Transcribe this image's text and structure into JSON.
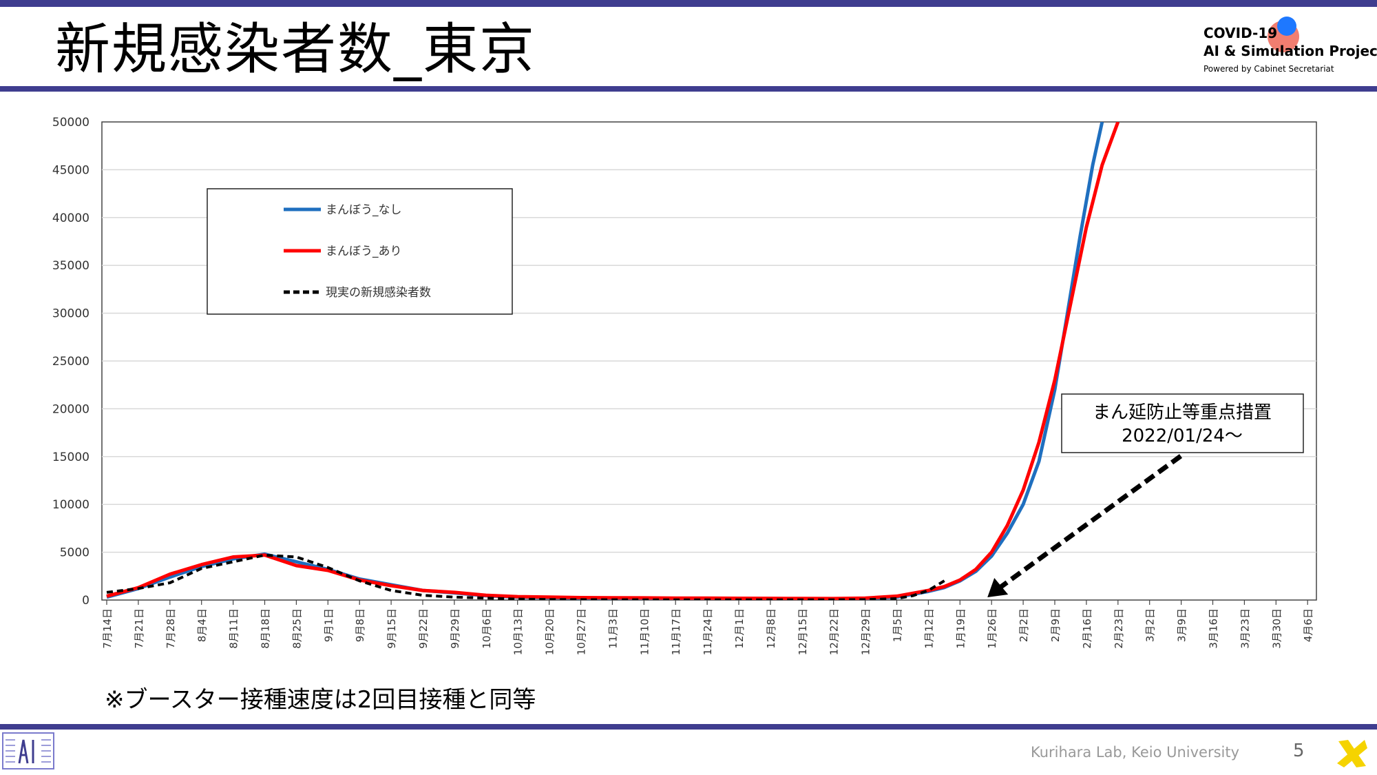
{
  "header": {
    "title": "新規感染者数_東京",
    "logo": {
      "line1": "COVID-19",
      "line2": "AI & Simulation Project",
      "line3": "Powered by Cabinet Secretariat"
    }
  },
  "note": "※ブースター接種速度は2回目接種と同等",
  "footer": {
    "lab": "Kurihara Lab, Keio University",
    "page": "5"
  },
  "chart_data": {
    "type": "line",
    "xlabel": "",
    "ylabel": "",
    "ylim": [
      0,
      50000
    ],
    "yticks": [
      "50000",
      "45000",
      "40000",
      "35000",
      "30000",
      "25000",
      "20000",
      "15000",
      "10000",
      "5000",
      "0"
    ],
    "x_labels": [
      "7月14日",
      "7月21日",
      "7月28日",
      "8月4日",
      "8月11日",
      "8月18日",
      "8月25日",
      "9月1日",
      "9月8日",
      "9月15日",
      "9月22日",
      "9月29日",
      "10月6日",
      "10月13日",
      "10月20日",
      "10月27日",
      "11月3日",
      "11月10日",
      "11月17日",
      "11月24日",
      "12月1日",
      "12月8日",
      "12月15日",
      "12月22日",
      "12月29日",
      "1月5日",
      "1月12日",
      "1月19日",
      "1月26日",
      "2月2日",
      "2月9日",
      "2月16日",
      "2月23日",
      "3月2日",
      "3月9日",
      "3月16日",
      "3月23日",
      "3月30日",
      "4月6日"
    ],
    "grid": "horizontal",
    "legend_position": "top-left",
    "annotation": {
      "line1": "まん延防止等重点措置",
      "line2": "2022/01/24～",
      "arrow_to_week": 28
    },
    "series": [
      {
        "name": "まんぼう_なし",
        "color": "#1f6fbf",
        "style": "solid",
        "points": [
          [
            0,
            300
          ],
          [
            1,
            1200
          ],
          [
            2,
            2400
          ],
          [
            3,
            3500
          ],
          [
            4,
            4300
          ],
          [
            5,
            4800
          ],
          [
            6,
            4000
          ],
          [
            7,
            3200
          ],
          [
            8,
            2200
          ],
          [
            9,
            1600
          ],
          [
            10,
            1000
          ],
          [
            11,
            750
          ],
          [
            12,
            450
          ],
          [
            13,
            300
          ],
          [
            14,
            250
          ],
          [
            15,
            200
          ],
          [
            16,
            180
          ],
          [
            17,
            170
          ],
          [
            18,
            170
          ],
          [
            19,
            170
          ],
          [
            20,
            160
          ],
          [
            21,
            150
          ],
          [
            22,
            140
          ],
          [
            23,
            120
          ],
          [
            24,
            150
          ],
          [
            25,
            300
          ],
          [
            26,
            900
          ],
          [
            26.5,
            1300
          ],
          [
            27,
            2000
          ],
          [
            27.5,
            3000
          ],
          [
            28,
            4600
          ],
          [
            28.5,
            7000
          ],
          [
            29,
            10000
          ],
          [
            29.5,
            14500
          ],
          [
            30,
            22000
          ],
          [
            30.4,
            30000
          ],
          [
            30.8,
            38000
          ],
          [
            31.2,
            45500
          ],
          [
            31.5,
            50000
          ]
        ]
      },
      {
        "name": "まんぼう_あり",
        "color": "#ff0000",
        "style": "solid",
        "points": [
          [
            0,
            400
          ],
          [
            1,
            1300
          ],
          [
            2,
            2700
          ],
          [
            3,
            3700
          ],
          [
            4,
            4500
          ],
          [
            5,
            4700
          ],
          [
            6,
            3600
          ],
          [
            7,
            3100
          ],
          [
            8,
            2100
          ],
          [
            9,
            1500
          ],
          [
            10,
            1000
          ],
          [
            11,
            800
          ],
          [
            12,
            500
          ],
          [
            13,
            350
          ],
          [
            14,
            300
          ],
          [
            15,
            250
          ],
          [
            16,
            230
          ],
          [
            17,
            220
          ],
          [
            18,
            200
          ],
          [
            19,
            200
          ],
          [
            20,
            180
          ],
          [
            21,
            170
          ],
          [
            22,
            160
          ],
          [
            23,
            150
          ],
          [
            24,
            200
          ],
          [
            25,
            400
          ],
          [
            26,
            1000
          ],
          [
            26.5,
            1400
          ],
          [
            27,
            2100
          ],
          [
            27.5,
            3200
          ],
          [
            28,
            5000
          ],
          [
            28.5,
            7800
          ],
          [
            29,
            11500
          ],
          [
            29.5,
            16500
          ],
          [
            30,
            23000
          ],
          [
            30.5,
            31000
          ],
          [
            31,
            39000
          ],
          [
            31.5,
            45500
          ],
          [
            32,
            50000
          ]
        ]
      },
      {
        "name": "現実の新規感染者数",
        "color": "#000000",
        "style": "dashed",
        "points": [
          [
            0,
            800
          ],
          [
            1,
            1200
          ],
          [
            2,
            1800
          ],
          [
            3,
            3300
          ],
          [
            4,
            4000
          ],
          [
            5,
            4700
          ],
          [
            6,
            4500
          ],
          [
            7,
            3400
          ],
          [
            8,
            2000
          ],
          [
            9,
            1000
          ],
          [
            10,
            500
          ],
          [
            11,
            300
          ],
          [
            12,
            200
          ],
          [
            13,
            100
          ],
          [
            14,
            60
          ],
          [
            15,
            40
          ],
          [
            16,
            30
          ],
          [
            17,
            25
          ],
          [
            18,
            20
          ],
          [
            19,
            20
          ],
          [
            20,
            20
          ],
          [
            21,
            15
          ],
          [
            22,
            15
          ],
          [
            23,
            20
          ],
          [
            24,
            40
          ],
          [
            25,
            150
          ],
          [
            25.5,
            450
          ],
          [
            26,
            1000
          ],
          [
            26.6,
            2200
          ]
        ]
      }
    ]
  }
}
